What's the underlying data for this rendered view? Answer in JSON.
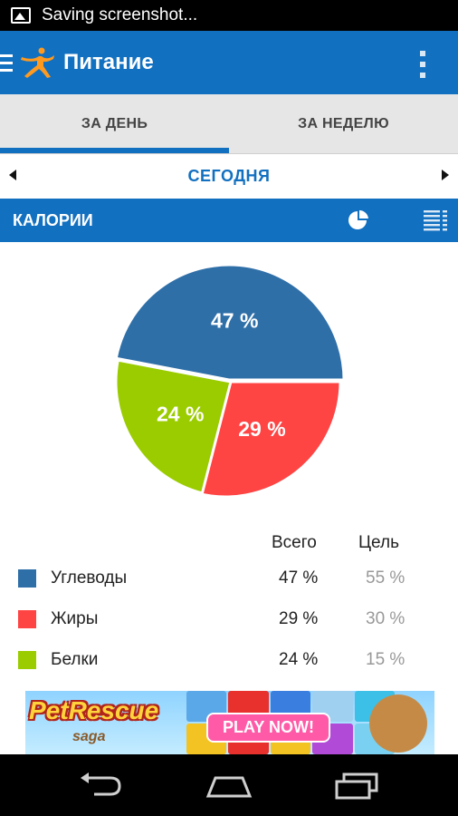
{
  "status_bar": {
    "text": "Saving screenshot..."
  },
  "action_bar": {
    "title": "Питание"
  },
  "tabs": [
    {
      "label": "ЗА ДЕНЬ",
      "active": true
    },
    {
      "label": "ЗА НЕДЕЛЮ",
      "active": false
    }
  ],
  "date_nav": {
    "label": "СЕГОДНЯ"
  },
  "section": {
    "title": "КАЛОРИИ"
  },
  "colors": {
    "carbs": "#2f6fa8",
    "fat": "#ff4444",
    "protein": "#9acc00",
    "accent": "#1270c0"
  },
  "chart_data": {
    "type": "pie",
    "slices": [
      {
        "label": "Углеводы",
        "value": 47,
        "display": "47 %",
        "color": "#2f6fa8"
      },
      {
        "label": "Жиры",
        "value": 29,
        "display": "29 %",
        "color": "#ff4444"
      },
      {
        "label": "Белки",
        "value": 24,
        "display": "24 %",
        "color": "#9acc00"
      }
    ]
  },
  "legend": {
    "header_total": "Всего",
    "header_goal": "Цель",
    "rows": [
      {
        "name": "Углеводы",
        "total": "47 %",
        "goal": "55 %"
      },
      {
        "name": "Жиры",
        "total": "29 %",
        "goal": "30 %"
      },
      {
        "name": "Белки",
        "total": "24 %",
        "goal": "15 %"
      }
    ]
  },
  "ad": {
    "brand": "PetRescue",
    "sub": "saga",
    "cta": "PLAY NOW!"
  }
}
